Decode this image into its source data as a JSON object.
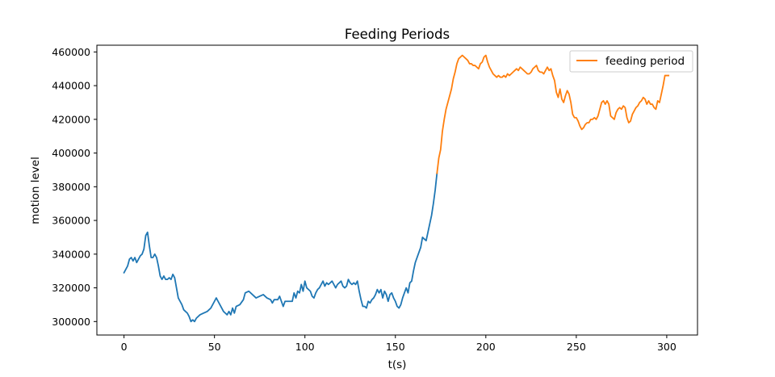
{
  "chart_data": {
    "type": "line",
    "title": "Feeding Periods",
    "xlabel": "t(s)",
    "ylabel": "motion level",
    "xlim": [
      -15,
      317
    ],
    "ylim": [
      292000,
      464000
    ],
    "xticks": [
      0,
      50,
      100,
      150,
      200,
      250,
      300
    ],
    "yticks": [
      300000,
      320000,
      340000,
      360000,
      380000,
      400000,
      420000,
      440000,
      460000
    ],
    "grid": false,
    "legend": {
      "position": "top-right"
    },
    "series": [
      {
        "name": "",
        "color": "#1f77b4",
        "points": [
          [
            0,
            329000
          ],
          [
            2,
            333000
          ],
          [
            3,
            337000
          ],
          [
            4,
            338000
          ],
          [
            5,
            336000
          ],
          [
            6,
            338000
          ],
          [
            7,
            335000
          ],
          [
            8,
            337000
          ],
          [
            9,
            339000
          ],
          [
            10,
            340000
          ],
          [
            11,
            343000
          ],
          [
            12,
            351000
          ],
          [
            13,
            353000
          ],
          [
            14,
            345000
          ],
          [
            15,
            338000
          ],
          [
            16,
            338000
          ],
          [
            17,
            340000
          ],
          [
            18,
            338000
          ],
          [
            19,
            333000
          ],
          [
            20,
            327000
          ],
          [
            21,
            325000
          ],
          [
            22,
            327000
          ],
          [
            23,
            325000
          ],
          [
            24,
            325000
          ],
          [
            25,
            326000
          ],
          [
            26,
            325000
          ],
          [
            27,
            328000
          ],
          [
            28,
            326000
          ],
          [
            29,
            320000
          ],
          [
            30,
            314000
          ],
          [
            31,
            312000
          ],
          [
            32,
            310000
          ],
          [
            33,
            307000
          ],
          [
            34,
            306000
          ],
          [
            35,
            305000
          ],
          [
            36,
            303000
          ],
          [
            37,
            300000
          ],
          [
            38,
            301000
          ],
          [
            39,
            300000
          ],
          [
            40,
            302000
          ],
          [
            42,
            304000
          ],
          [
            44,
            305000
          ],
          [
            46,
            306000
          ],
          [
            48,
            308000
          ],
          [
            50,
            312000
          ],
          [
            51,
            314000
          ],
          [
            52,
            312000
          ],
          [
            53,
            310000
          ],
          [
            54,
            308000
          ],
          [
            55,
            306000
          ],
          [
            56,
            305000
          ],
          [
            57,
            304000
          ],
          [
            58,
            306000
          ],
          [
            59,
            304000
          ],
          [
            60,
            308000
          ],
          [
            61,
            305000
          ],
          [
            62,
            309000
          ],
          [
            64,
            310000
          ],
          [
            66,
            313000
          ],
          [
            67,
            317000
          ],
          [
            69,
            318000
          ],
          [
            71,
            316000
          ],
          [
            73,
            314000
          ],
          [
            75,
            315000
          ],
          [
            77,
            316000
          ],
          [
            79,
            314000
          ],
          [
            81,
            313000
          ],
          [
            82,
            311000
          ],
          [
            83,
            313000
          ],
          [
            85,
            313000
          ],
          [
            86,
            315000
          ],
          [
            87,
            312000
          ],
          [
            88,
            309000
          ],
          [
            89,
            312000
          ],
          [
            91,
            312000
          ],
          [
            93,
            312000
          ],
          [
            94,
            317000
          ],
          [
            95,
            314000
          ],
          [
            96,
            318000
          ],
          [
            97,
            317000
          ],
          [
            98,
            322000
          ],
          [
            99,
            318000
          ],
          [
            100,
            324000
          ],
          [
            101,
            320000
          ],
          [
            102,
            319000
          ],
          [
            103,
            318000
          ],
          [
            104,
            315000
          ],
          [
            105,
            314000
          ],
          [
            106,
            317000
          ],
          [
            107,
            319000
          ],
          [
            108,
            320000
          ],
          [
            109,
            322000
          ],
          [
            110,
            324000
          ],
          [
            111,
            321000
          ],
          [
            112,
            323000
          ],
          [
            113,
            322000
          ],
          [
            114,
            323000
          ],
          [
            115,
            324000
          ],
          [
            116,
            322000
          ],
          [
            117,
            320000
          ],
          [
            118,
            322000
          ],
          [
            119,
            323000
          ],
          [
            120,
            324000
          ],
          [
            121,
            321000
          ],
          [
            122,
            320000
          ],
          [
            123,
            321000
          ],
          [
            124,
            325000
          ],
          [
            125,
            323000
          ],
          [
            126,
            322000
          ],
          [
            127,
            323000
          ],
          [
            128,
            322000
          ],
          [
            129,
            324000
          ],
          [
            130,
            318000
          ],
          [
            131,
            313000
          ],
          [
            132,
            309000
          ],
          [
            133,
            309000
          ],
          [
            134,
            308000
          ],
          [
            135,
            312000
          ],
          [
            136,
            311000
          ],
          [
            137,
            313000
          ],
          [
            138,
            314000
          ],
          [
            139,
            316000
          ],
          [
            140,
            319000
          ],
          [
            141,
            317000
          ],
          [
            142,
            319000
          ],
          [
            143,
            314000
          ],
          [
            144,
            318000
          ],
          [
            145,
            316000
          ],
          [
            146,
            312000
          ],
          [
            147,
            316000
          ],
          [
            148,
            317000
          ],
          [
            149,
            314000
          ],
          [
            150,
            312000
          ],
          [
            151,
            309000
          ],
          [
            152,
            308000
          ],
          [
            153,
            310000
          ],
          [
            154,
            314000
          ],
          [
            155,
            317000
          ],
          [
            156,
            320000
          ],
          [
            157,
            317000
          ],
          [
            158,
            323000
          ],
          [
            159,
            324000
          ],
          [
            160,
            330000
          ],
          [
            161,
            335000
          ],
          [
            162,
            338000
          ],
          [
            163,
            341000
          ],
          [
            164,
            344000
          ],
          [
            165,
            350000
          ],
          [
            166,
            349000
          ],
          [
            167,
            348000
          ],
          [
            168,
            353000
          ],
          [
            169,
            358000
          ],
          [
            170,
            363000
          ],
          [
            171,
            370000
          ],
          [
            172,
            378000
          ],
          [
            173,
            388000
          ]
        ]
      },
      {
        "name": "feeding period",
        "color": "#ff7f0e",
        "points": [
          [
            173,
            388000
          ],
          [
            174,
            397000
          ],
          [
            175,
            402000
          ],
          [
            176,
            413000
          ],
          [
            177,
            420000
          ],
          [
            178,
            426000
          ],
          [
            179,
            430000
          ],
          [
            180,
            434000
          ],
          [
            181,
            438000
          ],
          [
            182,
            444000
          ],
          [
            183,
            448000
          ],
          [
            184,
            453000
          ],
          [
            185,
            456000
          ],
          [
            186,
            457000
          ],
          [
            187,
            458000
          ],
          [
            188,
            457000
          ],
          [
            189,
            456000
          ],
          [
            190,
            455000
          ],
          [
            191,
            453000
          ],
          [
            192,
            453000
          ],
          [
            193,
            452000
          ],
          [
            194,
            452000
          ],
          [
            195,
            451000
          ],
          [
            196,
            450000
          ],
          [
            197,
            453000
          ],
          [
            198,
            454000
          ],
          [
            199,
            457000
          ],
          [
            200,
            458000
          ],
          [
            201,
            454000
          ],
          [
            202,
            451000
          ],
          [
            203,
            449000
          ],
          [
            204,
            447000
          ],
          [
            205,
            446000
          ],
          [
            206,
            445000
          ],
          [
            207,
            446000
          ],
          [
            208,
            445000
          ],
          [
            209,
            445000
          ],
          [
            210,
            446000
          ],
          [
            211,
            445000
          ],
          [
            212,
            447000
          ],
          [
            213,
            446000
          ],
          [
            214,
            447000
          ],
          [
            215,
            448000
          ],
          [
            216,
            449000
          ],
          [
            217,
            450000
          ],
          [
            218,
            449000
          ],
          [
            219,
            451000
          ],
          [
            220,
            450000
          ],
          [
            221,
            449000
          ],
          [
            222,
            448000
          ],
          [
            223,
            447000
          ],
          [
            224,
            447000
          ],
          [
            225,
            448000
          ],
          [
            226,
            450000
          ],
          [
            227,
            451000
          ],
          [
            228,
            452000
          ],
          [
            229,
            449000
          ],
          [
            230,
            448000
          ],
          [
            231,
            448000
          ],
          [
            232,
            447000
          ],
          [
            233,
            449000
          ],
          [
            234,
            451000
          ],
          [
            235,
            449000
          ],
          [
            236,
            450000
          ],
          [
            237,
            446000
          ],
          [
            238,
            443000
          ],
          [
            239,
            436000
          ],
          [
            240,
            433000
          ],
          [
            241,
            438000
          ],
          [
            242,
            432000
          ],
          [
            243,
            430000
          ],
          [
            244,
            434000
          ],
          [
            245,
            437000
          ],
          [
            246,
            435000
          ],
          [
            247,
            430000
          ],
          [
            248,
            423000
          ],
          [
            249,
            421000
          ],
          [
            250,
            421000
          ],
          [
            251,
            419000
          ],
          [
            252,
            416000
          ],
          [
            253,
            414000
          ],
          [
            254,
            415000
          ],
          [
            255,
            417000
          ],
          [
            256,
            418000
          ],
          [
            257,
            418000
          ],
          [
            258,
            420000
          ],
          [
            259,
            420000
          ],
          [
            260,
            421000
          ],
          [
            261,
            420000
          ],
          [
            262,
            422000
          ],
          [
            263,
            426000
          ],
          [
            264,
            430000
          ],
          [
            265,
            431000
          ],
          [
            266,
            429000
          ],
          [
            267,
            431000
          ],
          [
            268,
            429000
          ],
          [
            269,
            422000
          ],
          [
            270,
            421000
          ],
          [
            271,
            420000
          ],
          [
            272,
            424000
          ],
          [
            273,
            426000
          ],
          [
            274,
            427000
          ],
          [
            275,
            426000
          ],
          [
            276,
            428000
          ],
          [
            277,
            427000
          ],
          [
            278,
            421000
          ],
          [
            279,
            418000
          ],
          [
            280,
            419000
          ],
          [
            281,
            423000
          ],
          [
            282,
            425000
          ],
          [
            283,
            427000
          ],
          [
            284,
            428000
          ],
          [
            285,
            430000
          ],
          [
            286,
            431000
          ],
          [
            287,
            433000
          ],
          [
            288,
            432000
          ],
          [
            289,
            429000
          ],
          [
            290,
            431000
          ],
          [
            291,
            429000
          ],
          [
            292,
            429000
          ],
          [
            293,
            427000
          ],
          [
            294,
            426000
          ],
          [
            295,
            431000
          ],
          [
            296,
            430000
          ],
          [
            297,
            435000
          ],
          [
            298,
            440000
          ],
          [
            299,
            446000
          ],
          [
            300,
            446000
          ],
          [
            301,
            446000
          ]
        ]
      }
    ]
  }
}
